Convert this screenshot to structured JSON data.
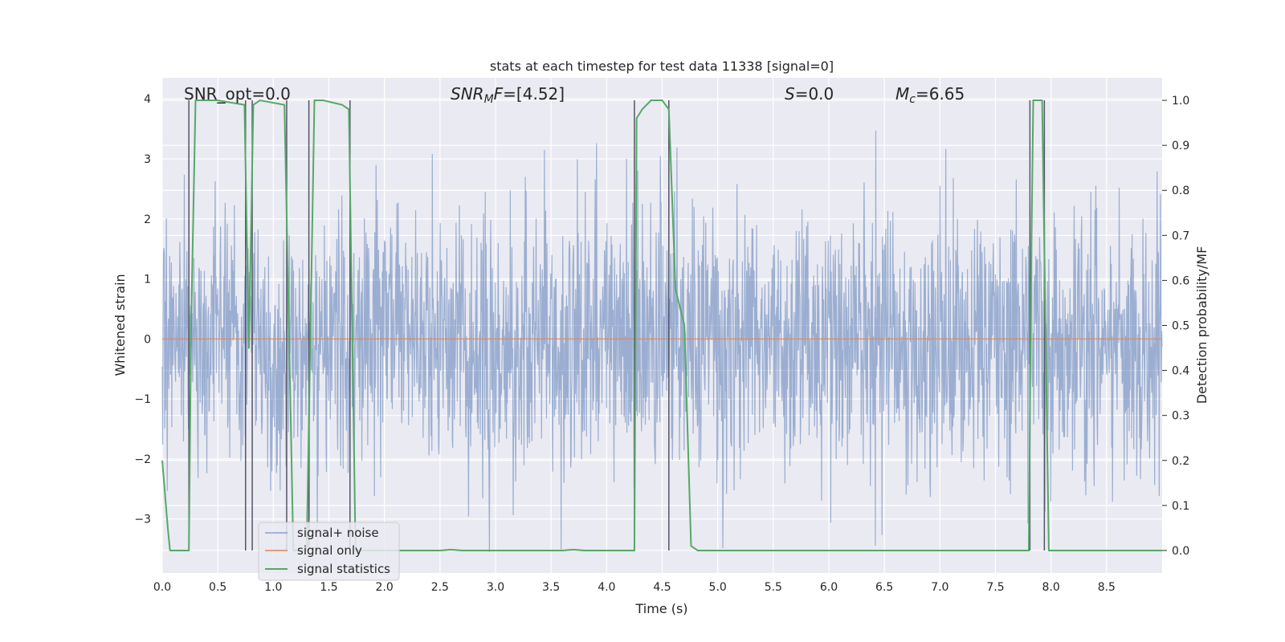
{
  "chart_data": {
    "type": "line",
    "title": "stats at each timestep for test data 11338 [signal=0]",
    "xlabel": "Time (s)",
    "ylabel": "Whitened strain",
    "y2label": "Detection probability/MF",
    "xlim": [
      0,
      9
    ],
    "ylim": [
      -3.9,
      4.35
    ],
    "y2lim": [
      -0.05,
      1.05
    ],
    "x_ticks": [
      0.0,
      0.5,
      1.0,
      1.5,
      2.0,
      2.5,
      3.0,
      3.5,
      4.0,
      4.5,
      5.0,
      5.5,
      6.0,
      6.5,
      7.0,
      7.5,
      8.0,
      8.5
    ],
    "x_tick_labels": [
      "0.0",
      "0.5",
      "1.0",
      "1.5",
      "2.0",
      "2.5",
      "3.0",
      "3.5",
      "4.0",
      "4.5",
      "5.0",
      "5.5",
      "6.0",
      "6.5",
      "7.0",
      "7.5",
      "8.0",
      "8.5"
    ],
    "y_ticks": [
      -3,
      -2,
      -1,
      0,
      1,
      2,
      3,
      4
    ],
    "y_tick_labels": [
      "−3",
      "−2",
      "−1",
      "0",
      "1",
      "2",
      "3",
      "4"
    ],
    "y2_ticks": [
      0.0,
      0.1,
      0.2,
      0.3,
      0.4,
      0.5,
      0.6,
      0.7,
      0.8,
      0.9,
      1.0
    ],
    "y2_tick_labels": [
      "0.0",
      "0.1",
      "0.2",
      "0.3",
      "0.4",
      "0.5",
      "0.6",
      "0.7",
      "0.8",
      "0.9",
      "1.0"
    ],
    "grid": true,
    "legend_position": "lower-left",
    "annotations": [
      {
        "text": "SNR_opt=0.0",
        "x": 0.2
      },
      {
        "text": "SNRMF=[4.52]",
        "x": 2.6
      },
      {
        "text": "S=0.0",
        "x": 5.6
      },
      {
        "text": "Mc=6.65",
        "x": 6.6
      }
    ],
    "series": [
      {
        "name": "signal+ noise",
        "color": "#4c72b0",
        "opacity": 0.5,
        "axis": "left",
        "description": "whitened noise strain sampled densely, approx. gaussian with sigma ~1.1, spikes reaching about +4 and -3.5",
        "envelope_std": 1.1,
        "x_range": [
          0,
          9
        ]
      },
      {
        "name": "signal only",
        "color": "#dd8452",
        "axis": "left",
        "x": [
          0,
          9
        ],
        "y": [
          0,
          0
        ]
      },
      {
        "name": "signal statistics",
        "color": "#55a868",
        "axis": "right",
        "x": [
          0.0,
          0.05,
          0.07,
          0.1,
          0.24,
          0.26,
          0.3,
          0.5,
          0.74,
          0.78,
          0.82,
          0.88,
          1.1,
          1.14,
          1.18,
          1.3,
          1.37,
          1.45,
          1.62,
          1.68,
          1.74,
          2.0,
          2.5,
          2.6,
          2.7,
          3.0,
          3.6,
          3.7,
          3.8,
          4.0,
          4.25,
          4.27,
          4.32,
          4.4,
          4.5,
          4.56,
          4.62,
          4.7,
          4.76,
          4.82,
          5.0,
          6.0,
          7.0,
          7.8,
          7.82,
          7.84,
          7.92,
          7.98,
          8.0,
          8.1,
          9.0
        ],
        "y": [
          0.2,
          0.05,
          0.0,
          0.0,
          0.0,
          0.5,
          1.0,
          1.0,
          0.99,
          0.45,
          0.99,
          1.0,
          0.99,
          0.5,
          0.0,
          0.0,
          1.0,
          1.0,
          0.99,
          0.98,
          0.0,
          0.0,
          0.0,
          0.002,
          0.0,
          0.0,
          0.0,
          0.002,
          0.0,
          0.0,
          0.0,
          0.96,
          0.98,
          1.0,
          1.0,
          0.98,
          0.58,
          0.5,
          0.01,
          0.0,
          0.0,
          0.0,
          0.0,
          0.0,
          0.6,
          1.0,
          1.0,
          0.0,
          0.0,
          0.0,
          0.0
        ]
      }
    ],
    "vertical_lines_x": [
      0.24,
      0.75,
      0.81,
      1.12,
      1.32,
      1.69,
      4.25,
      4.56,
      7.81,
      7.94
    ]
  }
}
